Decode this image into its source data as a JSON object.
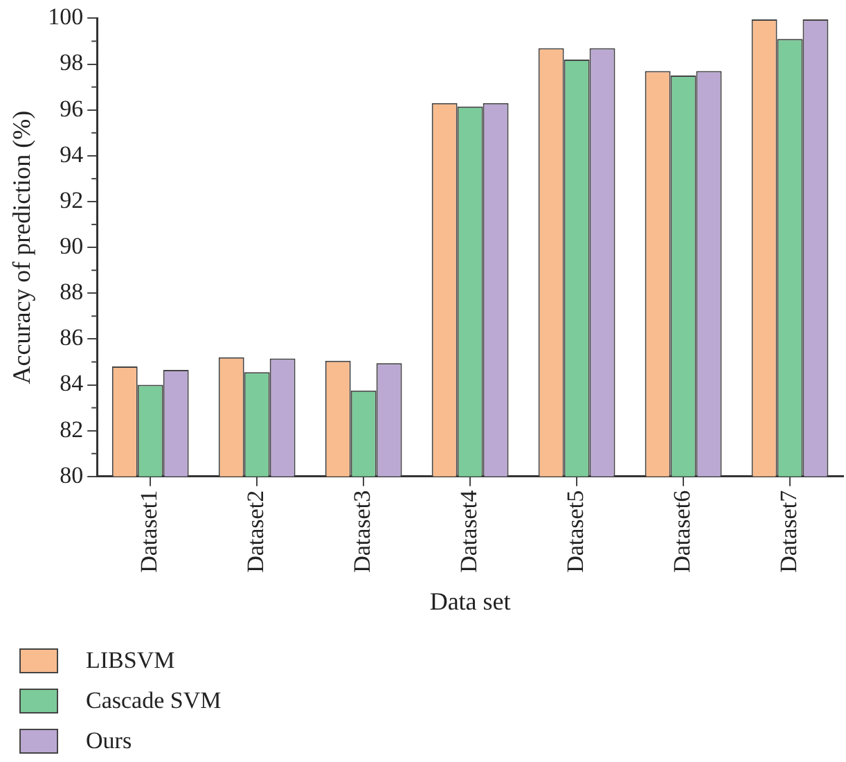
{
  "chart_data": {
    "type": "bar",
    "xlabel": "Data set",
    "ylabel": "Accuracy of prediction (%)",
    "categories": [
      "Dataset1",
      "Dataset2",
      "Dataset3",
      "Dataset4",
      "Dataset5",
      "Dataset6",
      "Dataset7"
    ],
    "series": [
      {
        "name": "LIBSVM",
        "color": "#f9bc8f",
        "values": [
          84.8,
          85.2,
          85.05,
          96.3,
          98.7,
          97.7,
          99.95
        ]
      },
      {
        "name": "Cascade SVM",
        "color": "#7ccb9a",
        "values": [
          84.0,
          84.55,
          83.75,
          96.15,
          98.2,
          97.5,
          99.1
        ]
      },
      {
        "name": "Ours",
        "color": "#bba9d3",
        "values": [
          84.65,
          85.15,
          84.95,
          96.3,
          98.7,
          97.7,
          99.95
        ]
      }
    ],
    "ylim": [
      80,
      100
    ],
    "yticks": [
      80,
      82,
      84,
      86,
      88,
      90,
      92,
      94,
      96,
      98,
      100
    ],
    "grid": false,
    "legend": "bottom"
  }
}
